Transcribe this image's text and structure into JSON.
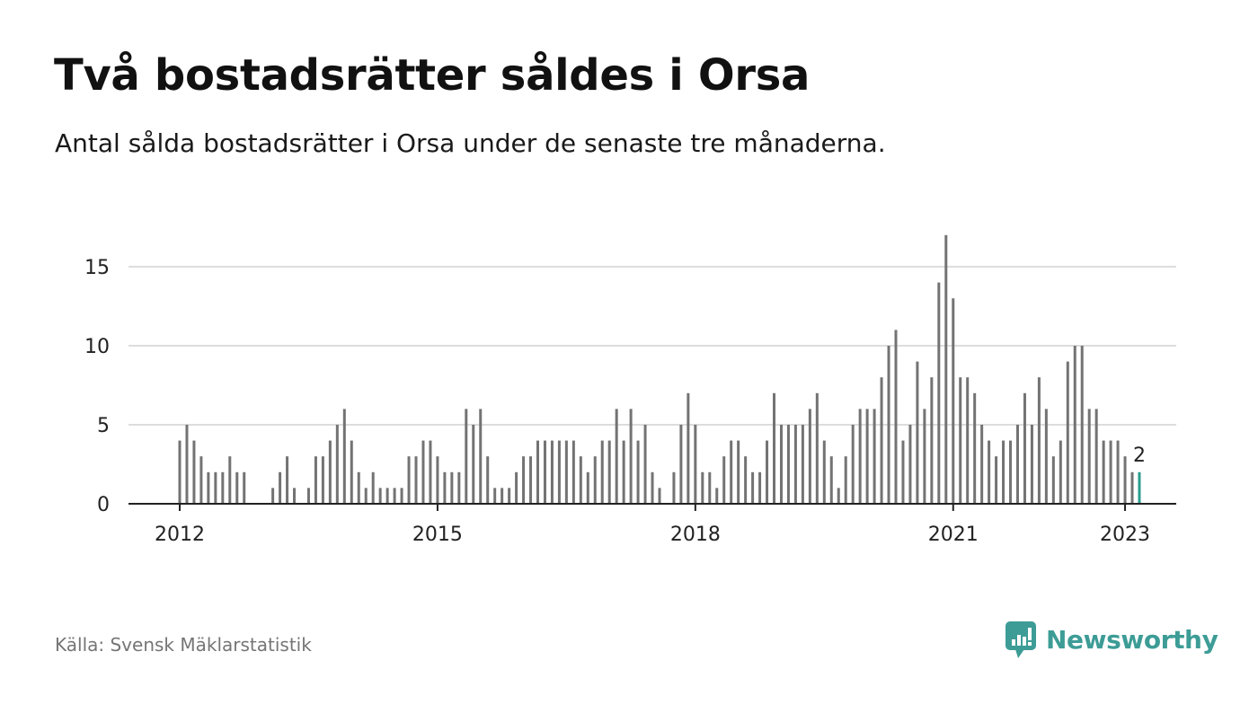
{
  "title": "Två bostadsrätter såldes i Orsa",
  "subtitle": "Antal sålda bostadsrätter i Orsa under de senaste tre månaderna.",
  "source": "Källa: Svensk Mäklarstatistik",
  "brand": "Newsworthy",
  "colors": {
    "bar": "#737373",
    "highlight": "#2a9d8f",
    "grid": "#dddddd",
    "axis": "#222222",
    "brand": "#3d9c96"
  },
  "chart_data": {
    "type": "bar",
    "title": "Två bostadsrätter såldes i Orsa",
    "subtitle": "Antal sålda bostadsrätter i Orsa under de senaste tre månaderna.",
    "x_start": "2012-01",
    "x_end": "2023-01",
    "x_ticks": [
      "2012",
      "2015",
      "2018",
      "2021",
      "2023"
    ],
    "y_ticks": [
      0,
      5,
      10,
      15
    ],
    "ylim": [
      0,
      17
    ],
    "grid": true,
    "highlight_label": "2",
    "series": [
      {
        "values": [
          4,
          5,
          4,
          3,
          2,
          2,
          2,
          3,
          2,
          2,
          0,
          0,
          0,
          1,
          2,
          3,
          1,
          0,
          1,
          3,
          3,
          4,
          5,
          6,
          4,
          2,
          1,
          2,
          1,
          1,
          1,
          1,
          3,
          3,
          4,
          4,
          3,
          2,
          2,
          2,
          6,
          5,
          6,
          3,
          1,
          1,
          1,
          2,
          3,
          3,
          4,
          4,
          4,
          4,
          4,
          4,
          3,
          2,
          3,
          4,
          4,
          6,
          4,
          6,
          4,
          5,
          2,
          1,
          0,
          2,
          5,
          7,
          5,
          2,
          2,
          1,
          3,
          4,
          4,
          3,
          2,
          2,
          4,
          7,
          5,
          5,
          5,
          5,
          6,
          7,
          4,
          3,
          1,
          3,
          5,
          6,
          6,
          6,
          8,
          10,
          11,
          4,
          5,
          9,
          6,
          8,
          14,
          17,
          13,
          8,
          8,
          7,
          5,
          4,
          3,
          4,
          4,
          5,
          7,
          5,
          8,
          6,
          3,
          4,
          9,
          10,
          10,
          6,
          6,
          4,
          4,
          4,
          3,
          2,
          2
        ]
      }
    ]
  }
}
